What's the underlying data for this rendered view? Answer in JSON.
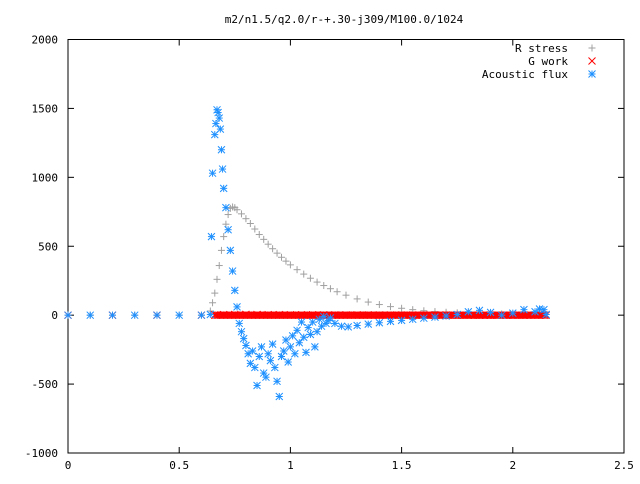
{
  "chart_data": {
    "type": "scatter",
    "title": "m2/n1.5/q2.0/r-+.30-j309/M100.0/1024",
    "xlabel": "",
    "ylabel": "",
    "xlim": [
      0,
      2.5
    ],
    "ylim": [
      -1000,
      2000
    ],
    "xticks": [
      0,
      0.5,
      1,
      1.5,
      2,
      2.5
    ],
    "xtick_labels": [
      "0",
      "0.5",
      "1",
      "1.5",
      "2",
      "2.5"
    ],
    "yticks": [
      -1000,
      -500,
      0,
      500,
      1000,
      1500,
      2000
    ],
    "ytick_labels": [
      "-1000",
      "-500",
      "0",
      "500",
      "1000",
      "1500",
      "2000"
    ],
    "grid": false,
    "legend_position": "top-right",
    "series": [
      {
        "name": "R stress",
        "marker": "plus",
        "color": "#a0a0a0",
        "x": [
          0.0,
          0.1,
          0.2,
          0.3,
          0.4,
          0.5,
          0.6,
          0.64,
          0.65,
          0.66,
          0.67,
          0.68,
          0.69,
          0.7,
          0.71,
          0.72,
          0.73,
          0.74,
          0.75,
          0.76,
          0.78,
          0.8,
          0.82,
          0.84,
          0.86,
          0.88,
          0.9,
          0.92,
          0.94,
          0.96,
          0.98,
          1.0,
          1.03,
          1.06,
          1.09,
          1.12,
          1.15,
          1.18,
          1.21,
          1.25,
          1.3,
          1.35,
          1.4,
          1.45,
          1.5,
          1.55,
          1.6,
          1.65,
          1.7,
          1.75,
          1.8,
          1.85,
          1.9,
          1.95,
          2.0,
          2.05,
          2.1,
          2.15
        ],
        "y": [
          0,
          0,
          0,
          0,
          0,
          0,
          0,
          30,
          90,
          160,
          260,
          360,
          470,
          570,
          660,
          730,
          775,
          785,
          780,
          765,
          735,
          700,
          665,
          625,
          585,
          550,
          515,
          482,
          450,
          420,
          392,
          365,
          330,
          298,
          268,
          240,
          215,
          192,
          170,
          145,
          118,
          95,
          77,
          62,
          50,
          40,
          32,
          26,
          21,
          17,
          14,
          12,
          10,
          9,
          8,
          7,
          6,
          5
        ]
      },
      {
        "name": "G work",
        "marker": "cross",
        "color": "#ff0000",
        "x": [
          0.0,
          0.2,
          0.4,
          0.6,
          0.66,
          0.7,
          0.75,
          0.8,
          0.85,
          0.9,
          0.95,
          1.0,
          1.05,
          1.1,
          1.15,
          1.2,
          1.25,
          1.3,
          1.35,
          1.4,
          1.45,
          1.5,
          1.55,
          1.6,
          1.65,
          1.7,
          1.75,
          1.8,
          1.85,
          1.9,
          1.95,
          2.0,
          2.05,
          2.1,
          2.15
        ],
        "y": [
          0,
          0,
          0,
          0,
          2,
          4,
          5,
          6,
          5,
          4,
          4,
          3,
          3,
          3,
          2,
          2,
          2,
          2,
          2,
          1,
          1,
          1,
          1,
          1,
          1,
          1,
          0,
          0,
          0,
          0,
          0,
          0,
          0,
          2,
          0
        ]
      },
      {
        "name": "Acoustic flux",
        "marker": "star",
        "color": "#1e90ff",
        "x": [
          0.0,
          0.1,
          0.2,
          0.3,
          0.4,
          0.5,
          0.6,
          0.64,
          0.645,
          0.65,
          0.66,
          0.665,
          0.67,
          0.675,
          0.68,
          0.685,
          0.69,
          0.695,
          0.7,
          0.71,
          0.72,
          0.73,
          0.74,
          0.75,
          0.76,
          0.77,
          0.78,
          0.79,
          0.8,
          0.81,
          0.82,
          0.83,
          0.84,
          0.85,
          0.86,
          0.87,
          0.88,
          0.89,
          0.9,
          0.91,
          0.92,
          0.93,
          0.94,
          0.95,
          0.96,
          0.97,
          0.98,
          0.99,
          1.0,
          1.01,
          1.02,
          1.03,
          1.04,
          1.05,
          1.06,
          1.07,
          1.08,
          1.09,
          1.1,
          1.11,
          1.12,
          1.13,
          1.14,
          1.15,
          1.16,
          1.17,
          1.18,
          1.2,
          1.23,
          1.26,
          1.3,
          1.35,
          1.4,
          1.45,
          1.5,
          1.55,
          1.6,
          1.65,
          1.7,
          1.75,
          1.8,
          1.85,
          1.9,
          1.95,
          2.0,
          2.05,
          2.1,
          2.12,
          2.14,
          2.15
        ],
        "y": [
          0,
          0,
          0,
          0,
          0,
          0,
          0,
          5,
          570,
          1030,
          1310,
          1390,
          1490,
          1470,
          1430,
          1350,
          1200,
          1060,
          920,
          780,
          620,
          470,
          320,
          180,
          60,
          -60,
          -120,
          -170,
          -220,
          -280,
          -350,
          -260,
          -380,
          -510,
          -300,
          -230,
          -420,
          -450,
          -280,
          -330,
          -210,
          -380,
          -480,
          -590,
          -300,
          -260,
          -180,
          -340,
          -230,
          -150,
          -280,
          -110,
          -200,
          -50,
          -160,
          -270,
          -90,
          -140,
          -50,
          -230,
          -120,
          -30,
          -80,
          -10,
          -60,
          -40,
          -20,
          -60,
          -80,
          -85,
          -75,
          -65,
          -55,
          -45,
          -38,
          -30,
          -22,
          -14,
          -6,
          5,
          25,
          35,
          20,
          0,
          15,
          40,
          25,
          45,
          40,
          5
        ]
      }
    ]
  }
}
